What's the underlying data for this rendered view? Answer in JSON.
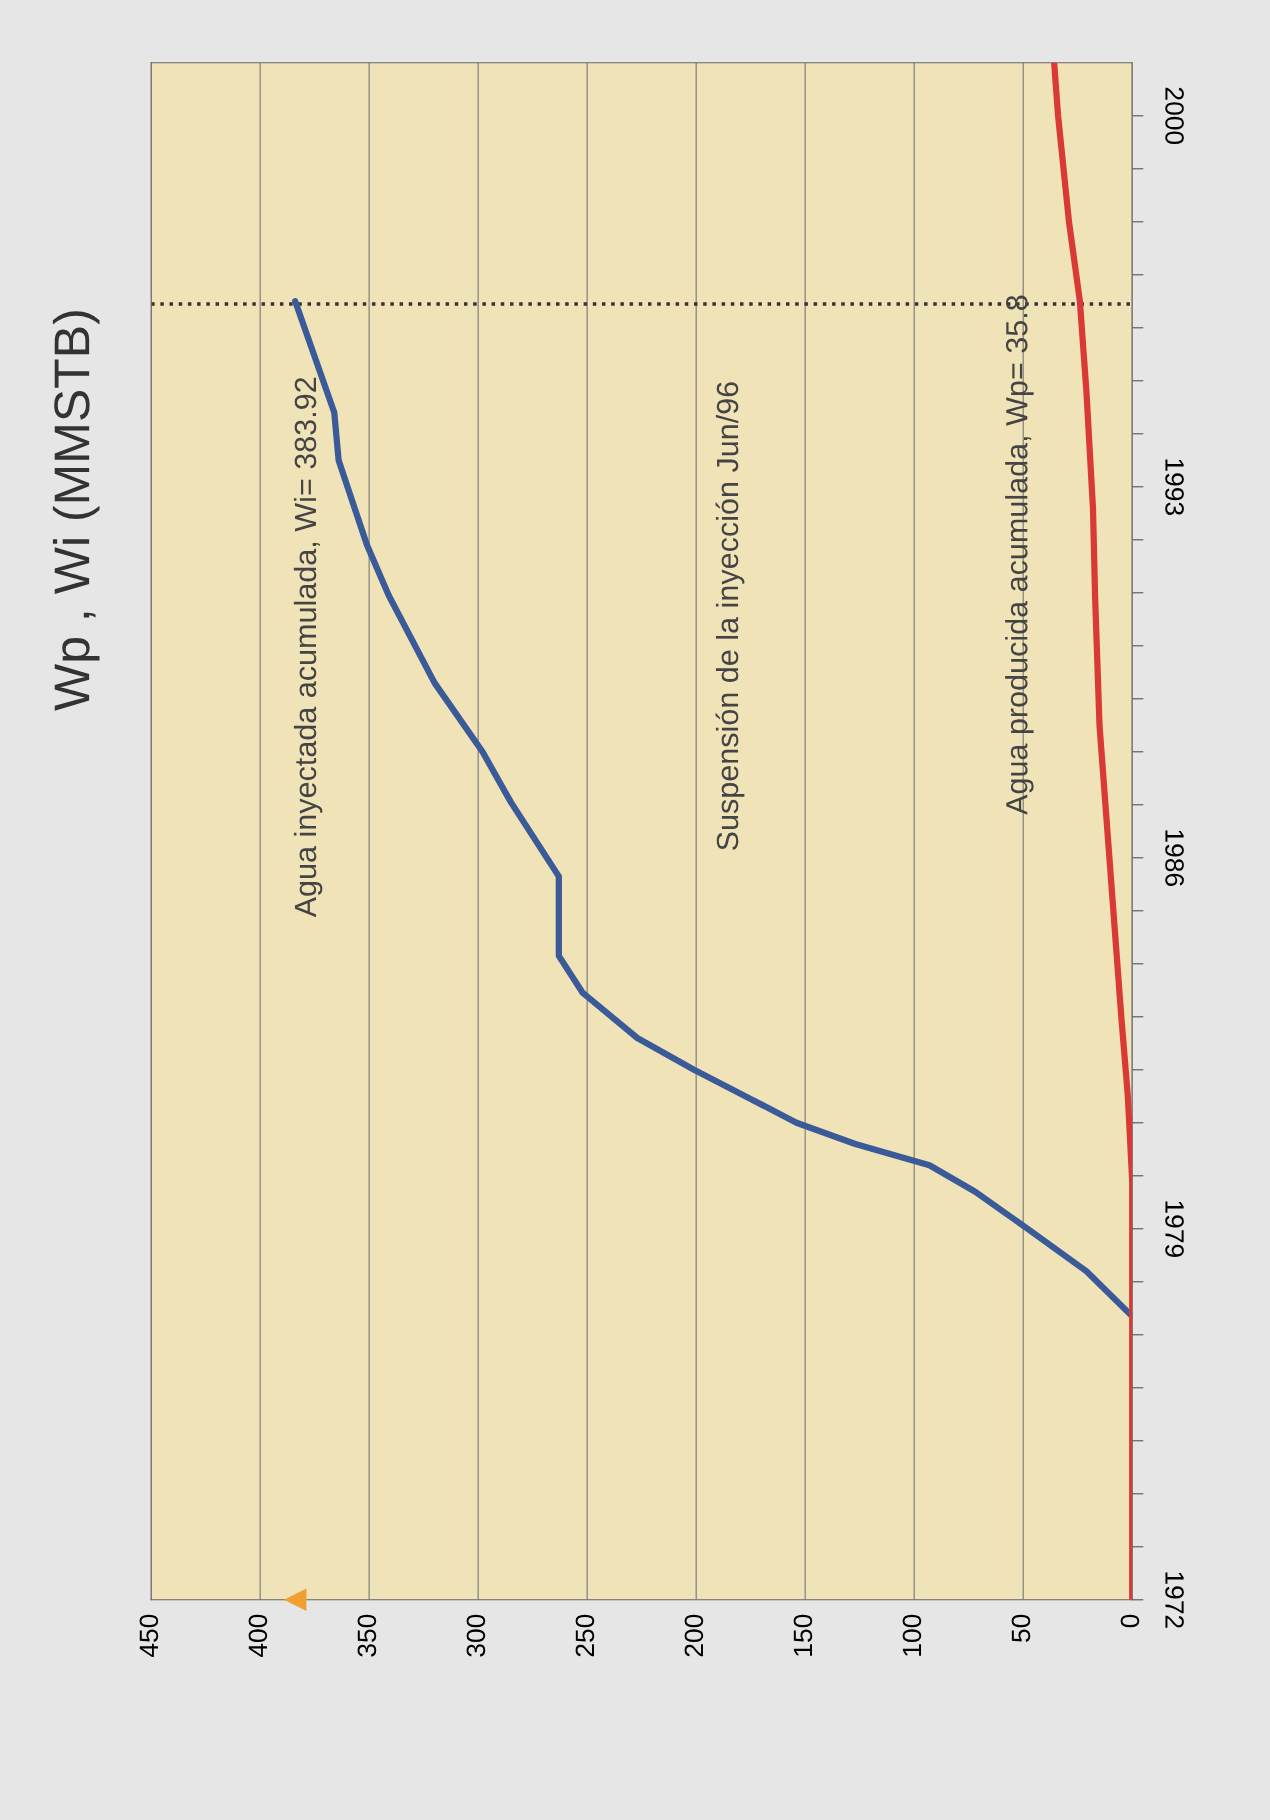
{
  "chart_data": {
    "type": "line",
    "title": "Wp , Wi (MMSTB)",
    "xlim": [
      450,
      0
    ],
    "xticks": [
      450,
      400,
      350,
      300,
      250,
      200,
      150,
      100,
      50,
      0
    ],
    "ylim": [
      1972,
      2001
    ],
    "yticks": [
      1972,
      {
        "value": 1973,
        "label": null
      },
      {
        "value": 1974,
        "label": null
      },
      {
        "value": 1975,
        "label": null
      },
      {
        "value": 1976,
        "label": null
      },
      {
        "value": 1977,
        "label": null
      },
      {
        "value": 1978,
        "label": null
      },
      1979,
      {
        "value": 1980,
        "label": null
      },
      {
        "value": 1981,
        "label": null
      },
      {
        "value": 1982,
        "label": null
      },
      {
        "value": 1983,
        "label": null
      },
      {
        "value": 1984,
        "label": null
      },
      {
        "value": 1985,
        "label": null
      },
      1986,
      {
        "value": 1987,
        "label": null
      },
      {
        "value": 1988,
        "label": null
      },
      {
        "value": 1989,
        "label": null
      },
      {
        "value": 1990,
        "label": null
      },
      {
        "value": 1991,
        "label": null
      },
      {
        "value": 1992,
        "label": null
      },
      1993,
      {
        "value": 1994,
        "label": null
      },
      {
        "value": 1995,
        "label": null
      },
      {
        "value": 1996,
        "label": null
      },
      {
        "value": 1997,
        "label": null
      },
      {
        "value": 1998,
        "label": null
      },
      {
        "value": 1999,
        "label": null
      },
      2000
    ],
    "grid": "x",
    "legend": false,
    "line_style": "solid",
    "series": [
      {
        "color": "#3b5a98",
        "x": [
          0,
          21,
          48,
          72,
          93,
          127,
          154,
          175,
          201,
          227,
          252,
          263,
          263,
          285,
          298,
          320,
          341,
          351,
          364,
          366,
          383.92
        ],
        "values": [
          1977.35,
          1978.2,
          1979.0,
          1979.7,
          1980.2,
          1980.6,
          1981.0,
          1981.45,
          1982.0,
          1982.6,
          1983.45,
          1984.15,
          1985.65,
          1987.05,
          1988.0,
          1989.3,
          1990.95,
          1991.9,
          1993.5,
          1994.4,
          1996.5
        ]
      },
      {
        "color": "#d93a36",
        "x": [
          0,
          0,
          2,
          5,
          9,
          15,
          17,
          18,
          21,
          24,
          29,
          34,
          35.8
        ],
        "values": [
          1972,
          1979.9,
          1981.5,
          1983.0,
          1985.2,
          1988.5,
          1990.9,
          1992.6,
          1994.8,
          1996.5,
          1998.0,
          2000,
          2001
        ]
      },
      {
        "type": "scatter",
        "marker": "triangle",
        "color": "#f0a030",
        "x": [
          383.92
        ],
        "values": [
          1972
        ]
      }
    ],
    "ref_lines": [
      {
        "axis": "y",
        "value": 1996.45,
        "color": "#333333",
        "line_style": "dotted"
      }
    ],
    "annotations": [
      "Agua inyectada acumulada, Wi= 383.92",
      "Suspensión de la inyección Jun/96",
      "Agua producida acumulada, Wp= 35.8"
    ]
  }
}
